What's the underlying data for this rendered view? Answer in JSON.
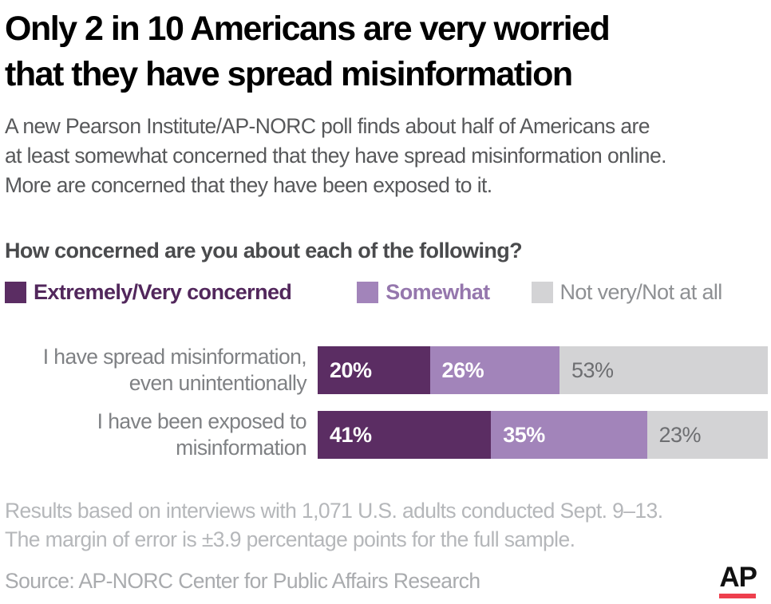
{
  "colors": {
    "extremely": "#5b2d63",
    "somewhat": "#a284ba",
    "not_very": "#d3d3d5",
    "ap_red": "#ee3f4d"
  },
  "header": {
    "title_lines": [
      "Only 2 in 10 Americans are very worried",
      "that they have spread misinformation"
    ],
    "subtitle_lines": [
      "A new Pearson Institute/AP-NORC poll finds about half of Americans are",
      "at least somewhat concerned that they have spread misinformation online.",
      "More are concerned that they have been exposed to it."
    ]
  },
  "question": "How concerned are you about each of the following?",
  "legend": [
    {
      "label": "Extremely/Very concerned",
      "swatch_color": "#5b2d63",
      "text_color": "#52275c",
      "bold": true
    },
    {
      "label": "Somewhat",
      "swatch_color": "#a284ba",
      "text_color": "#9577ad",
      "bold": true
    },
    {
      "label": "Not very/Not at all",
      "swatch_color": "#d3d3d5",
      "text_color": "#8e9093",
      "bold": false
    }
  ],
  "chart_data": {
    "type": "bar",
    "subtype": "horizontal-stacked",
    "unit": "percent",
    "title": "How concerned are you about each of the following?",
    "series": [
      "Extremely/Very concerned",
      "Somewhat",
      "Not very/Not at all"
    ],
    "series_colors": [
      "#5b2d63",
      "#a284ba",
      "#d3d3d5"
    ],
    "xlim": [
      0,
      99
    ],
    "legend_position": "top",
    "grid": false,
    "rows": [
      {
        "category": "I have spread misinformation, even unintentionally",
        "category_lines": [
          "I have spread misinformation,",
          "even unintentionally"
        ],
        "values": [
          20,
          26,
          53
        ],
        "labels": [
          "20%",
          "26%",
          "53%"
        ]
      },
      {
        "category": "I have been exposed to misinformation",
        "category_lines": [
          "I have been exposed to",
          "misinformation"
        ],
        "values": [
          41,
          35,
          23
        ],
        "labels": [
          "41%",
          "35%",
          "23%"
        ]
      }
    ]
  },
  "footnote_lines": [
    "Results based on interviews with 1,071 U.S. adults conducted Sept. 9–13.",
    "The margin of error is ±3.9 percentage points for the full sample."
  ],
  "source": "Source: AP-NORC Center for Public Affairs Research",
  "ap_logo_text": "AP"
}
